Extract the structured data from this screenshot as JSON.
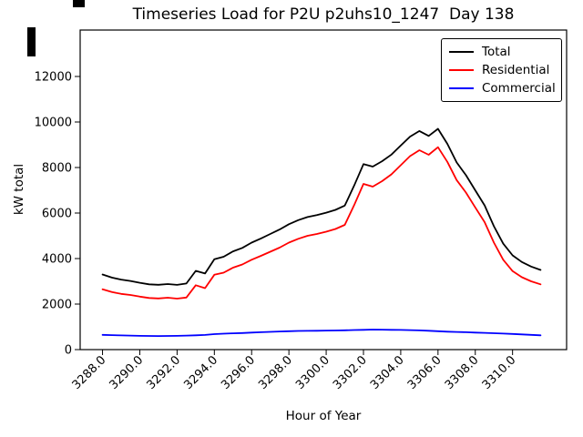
{
  "figure": {
    "title": "Timeseries Load for P2U p2uhs10_1247  Day 138",
    "xlabel": "Hour of Year",
    "ylabel": "kW total"
  },
  "chart_data": {
    "type": "line",
    "title": "Timeseries Load for P2U p2uhs10_1247  Day 138",
    "xlabel": "Hour of Year",
    "ylabel": "kW total",
    "grid": false,
    "legend_position": "upper right",
    "xlim": [
      3286.8,
      3312.9
    ],
    "ylim": [
      0,
      14040
    ],
    "x_ticks": [
      3288,
      3290,
      3292,
      3294,
      3296,
      3298,
      3300,
      3302,
      3304,
      3306,
      3308,
      3310
    ],
    "x_tick_labels": [
      "3288.0",
      "3290.0",
      "3292.0",
      "3294.0",
      "3296.0",
      "3298.0",
      "3300.0",
      "3302.0",
      "3304.0",
      "3306.0",
      "3308.0",
      "3310.0"
    ],
    "y_ticks": [
      0,
      2000,
      4000,
      6000,
      8000,
      10000,
      12000
    ],
    "y_tick_labels": [
      "0",
      "2000",
      "4000",
      "6000",
      "8000",
      "10000",
      "12000"
    ],
    "x": [
      3288.0,
      3288.5,
      3289.0,
      3289.5,
      3290.0,
      3290.5,
      3291.0,
      3291.5,
      3292.0,
      3292.5,
      3293.0,
      3293.5,
      3294.0,
      3294.5,
      3295.0,
      3295.5,
      3296.0,
      3296.5,
      3297.0,
      3297.5,
      3298.0,
      3298.5,
      3299.0,
      3299.5,
      3300.0,
      3300.5,
      3301.0,
      3301.5,
      3302.0,
      3302.5,
      3303.0,
      3303.5,
      3304.0,
      3304.5,
      3305.0,
      3305.5,
      3306.0,
      3306.5,
      3307.0,
      3307.5,
      3308.0,
      3308.5,
      3309.0,
      3309.5,
      3310.0,
      3310.5,
      3311.0,
      3311.5
    ],
    "series": [
      {
        "name": "Total",
        "color": "#000000",
        "values": [
          3300,
          3165,
          3075,
          3015,
          2935,
          2870,
          2848,
          2880,
          2845,
          2905,
          3460,
          3345,
          3970,
          4080,
          4315,
          4470,
          4700,
          4885,
          5080,
          5275,
          5510,
          5690,
          5825,
          5910,
          6015,
          6140,
          6330,
          7210,
          8150,
          8040,
          8275,
          8570,
          8965,
          9355,
          9605,
          9390,
          9700,
          9040,
          8225,
          7665,
          7000,
          6335,
          5420,
          4655,
          4140,
          3850,
          3650,
          3500
        ]
      },
      {
        "name": "Residential",
        "color": "#ff0000",
        "values": [
          2650,
          2530,
          2450,
          2400,
          2330,
          2270,
          2250,
          2280,
          2240,
          2290,
          2830,
          2700,
          3290,
          3380,
          3600,
          3740,
          3950,
          4120,
          4300,
          4480,
          4700,
          4870,
          5000,
          5080,
          5180,
          5300,
          5480,
          6350,
          7280,
          7160,
          7400,
          7700,
          8100,
          8500,
          8760,
          8560,
          8890,
          8250,
          7450,
          6900,
          6250,
          5600,
          4700,
          3950,
          3450,
          3180,
          3000,
          2870
        ]
      },
      {
        "name": "Commercial",
        "color": "#0000ff",
        "values": [
          650,
          635,
          625,
          615,
          605,
          600,
          598,
          600,
          605,
          615,
          630,
          645,
          680,
          700,
          715,
          730,
          750,
          765,
          780,
          795,
          810,
          820,
          825,
          830,
          835,
          840,
          850,
          860,
          870,
          880,
          875,
          870,
          865,
          855,
          845,
          830,
          810,
          790,
          775,
          765,
          750,
          735,
          720,
          705,
          690,
          670,
          650,
          630
        ]
      }
    ]
  }
}
